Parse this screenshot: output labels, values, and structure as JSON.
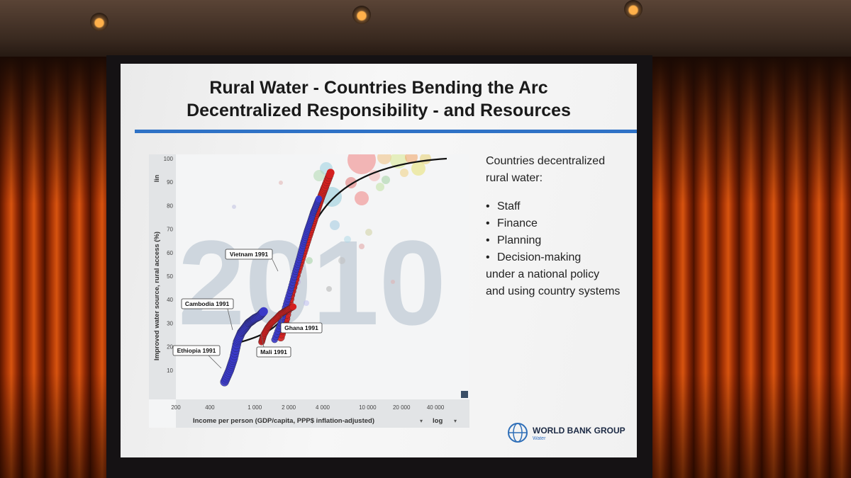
{
  "slide": {
    "title_line1": "Rural Water - Countries Bending the Arc",
    "title_line2": "Decentralized Responsibility - and Resources"
  },
  "chart": {
    "year_watermark": "2010",
    "ylabel": "Improved water source, rural access (%)",
    "xlabel": "Income per person (GDP/capita, PPP$ inflation-adjusted)",
    "y_scale_label": "lin",
    "x_scale_label": "log",
    "y_ticks": [
      "10",
      "20",
      "30",
      "40",
      "50",
      "60",
      "70",
      "80",
      "90",
      "100"
    ],
    "x_ticks": [
      "200",
      "400",
      "1 000",
      "2 000",
      "4 000",
      "10 000",
      "20 000",
      "40 000"
    ],
    "annotations": [
      "Vietnam 1991",
      "Cambodia 1991",
      "Ghana 1991",
      "Ethiopia 1991",
      "Mali 1991"
    ],
    "colors": {
      "red_trail": "#d42020",
      "blue_trail": "#3a3ac8",
      "curve": "#111111",
      "watermark": "#9fb2c0"
    }
  },
  "chart_data": {
    "type": "scatter",
    "ylabel": "Improved water source, rural access (%)",
    "xlabel": "Income per person (GDP/capita, PPP$ inflation-adjusted)",
    "x_scale": "log",
    "xlim": [
      200,
      80000
    ],
    "ylim": [
      0,
      100
    ],
    "series": [
      {
        "x": [
          1700,
          1900,
          2100,
          2400,
          2700,
          3000,
          3300,
          3600,
          3900,
          4200,
          4700
        ],
        "y": [
          24,
          32,
          42,
          52,
          60,
          67,
          73,
          79,
          84,
          88,
          94
        ]
      },
      {
        "x": [
          540,
          600,
          650,
          700,
          760,
          820,
          880,
          940,
          1000,
          1100,
          1200
        ],
        "y": [
          5,
          10,
          15,
          22,
          26,
          28,
          30,
          31,
          32,
          33,
          35
        ]
      },
      {
        "x": [
          1500,
          1700,
          1900,
          2100,
          2300,
          2500,
          2700,
          2900,
          3100,
          3300,
          3500,
          3700
        ],
        "y": [
          23,
          30,
          38,
          45,
          52,
          58,
          64,
          69,
          73,
          77,
          80,
          83
        ]
      },
      {
        "x": [
          1150,
          1200,
          1300,
          1400,
          1550,
          1700,
          1850,
          2000,
          2200
        ],
        "y": [
          22,
          25,
          28,
          30,
          32,
          34,
          35,
          36,
          37
        ]
      }
    ],
    "annotations": [
      "Vietnam 1991",
      "Cambodia 1991",
      "Ghana 1991",
      "Ethiopia 1991",
      "Mali 1991"
    ]
  }
}
